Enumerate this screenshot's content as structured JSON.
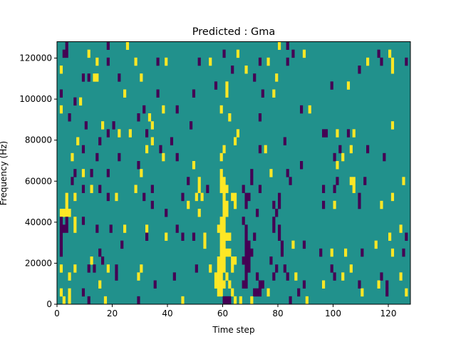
{
  "chart_data": {
    "type": "heatmap",
    "title": "Predicted : Gma",
    "xlabel": "Time step",
    "ylabel": "Frequency (Hz)",
    "xlim": [
      0,
      128
    ],
    "ylim": [
      0,
      128000
    ],
    "x_ticks": [
      0,
      20,
      40,
      60,
      80,
      100,
      120
    ],
    "x_tick_labels": [
      "0",
      "20",
      "40",
      "60",
      "80",
      "100",
      "120"
    ],
    "y_ticks": [
      0,
      20000,
      40000,
      60000,
      80000,
      100000,
      120000
    ],
    "y_tick_labels": [
      "0",
      "20000",
      "40000",
      "60000",
      "80000",
      "100000",
      "120000"
    ],
    "n_cols": 128,
    "n_rows": 33,
    "value_colors": {
      "-1": "#440154",
      "0": "#21918c",
      "1": "#fde725"
    },
    "background_value": 0,
    "rows_top_to_bottom": [
      {
        "neg": [
          3,
          18,
          83
        ],
        "pos": [
          25,
          80
        ]
      },
      {
        "neg": [
          2,
          3,
          60,
          85,
          116
        ],
        "pos": [
          11,
          65,
          89,
          120
        ]
      },
      {
        "neg": [
          18,
          36,
          51,
          73,
          83,
          117,
          126
        ],
        "pos": [
          14,
          28,
          39,
          55,
          76,
          112,
          121
        ]
      },
      {
        "neg": [
          63,
          109
        ],
        "pos": [
          1,
          68,
          121
        ]
      },
      {
        "neg": [
          9,
          11,
          22,
          71
        ],
        "pos": [
          13,
          14,
          30,
          79
        ]
      },
      {
        "neg": [
          57,
          99
        ],
        "pos": [
          61,
          105
        ]
      },
      {
        "neg": [
          1,
          36,
          49,
          74
        ],
        "pos": [
          24,
          61,
          78
        ]
      },
      {
        "neg": [
          6
        ],
        "pos": [
          8
        ]
      },
      {
        "neg": [
          31,
          43,
          88
        ],
        "pos": [
          1,
          38,
          59,
          91
        ]
      },
      {
        "neg": [
          4,
          29,
          73
        ],
        "pos": [
          33,
          62
        ]
      },
      {
        "neg": [
          10,
          20,
          48
        ],
        "pos": [
          16,
          34,
          121
        ]
      },
      {
        "neg": [
          18,
          32,
          96,
          97,
          105
        ],
        "pos": [
          22,
          26,
          65,
          101,
          107
        ]
      },
      {
        "neg": [
          15,
          41,
          82
        ],
        "pos": [
          7,
          34,
          64
        ]
      },
      {
        "neg": [
          9,
          37,
          73,
          102,
          112
        ],
        "pos": [
          32,
          60,
          75,
          106
        ]
      },
      {
        "neg": [
          14,
          22,
          43,
          100,
          118
        ],
        "pos": [
          5,
          38,
          59,
          103
        ]
      },
      {
        "neg": [
          29,
          88
        ],
        "pos": [
          49,
          101
        ]
      },
      {
        "neg": [
          6,
          12,
          18,
          70,
          83
        ],
        "pos": [
          9,
          30,
          59,
          77
        ]
      },
      {
        "neg": [
          5,
          47,
          70,
          84,
          101,
          111
        ],
        "pos": [
          51,
          59,
          60,
          106,
          107,
          125
        ]
      },
      {
        "neg": [
          9,
          15,
          34,
          54,
          67,
          73,
          96,
          100
        ],
        "pos": [
          12,
          28,
          51,
          59,
          60,
          61,
          107
        ]
      },
      {
        "neg": [
          18,
          31,
          45,
          68,
          69,
          80,
          109
        ],
        "pos": [
          3,
          6,
          21,
          50,
          52,
          60,
          63,
          64,
          121
        ]
      },
      {
        "neg": [
          34,
          68,
          78,
          80,
          96,
          109
        ],
        "pos": [
          3,
          47,
          60,
          61,
          64,
          100,
          117
        ]
      },
      {
        "neg": [
          39,
          72,
          79
        ],
        "pos": [
          1,
          2,
          3,
          4,
          51,
          60,
          61
        ]
      },
      {
        "neg": [
          1,
          3,
          9,
          67,
          78
        ],
        "pos": [
          6,
          59,
          60
        ]
      },
      {
        "neg": [
          1,
          2,
          3,
          14,
          19,
          43,
          68,
          78,
          80
        ],
        "pos": [
          6,
          24,
          32,
          58,
          59,
          60,
          124
        ]
      },
      {
        "neg": [
          1,
          32,
          45,
          49,
          68,
          71,
          80,
          126
        ],
        "pos": [
          39,
          53,
          59,
          60,
          61,
          62,
          120
        ]
      },
      {
        "neg": [
          1,
          23,
          68,
          69,
          81,
          89
        ],
        "pos": [
          53,
          59,
          60,
          85,
          115
        ]
      },
      {
        "neg": [
          1,
          15,
          68,
          69,
          70,
          81,
          95,
          110,
          125
        ],
        "pos": [
          59,
          60,
          61,
          62,
          99,
          104,
          121
        ]
      },
      {
        "neg": [
          16,
          67,
          68,
          69,
          77
        ],
        "pos": [
          12,
          58,
          59,
          60,
          63,
          64
        ]
      },
      {
        "neg": [
          11,
          13,
          21,
          50,
          68,
          69,
          79,
          82,
          99
        ],
        "pos": [
          1,
          6,
          18,
          30,
          55,
          58,
          59,
          60,
          63,
          106
        ]
      },
      {
        "neg": [
          21,
          42,
          68,
          72,
          78,
          83,
          100,
          117
        ],
        "pos": [
          4,
          29,
          57,
          58,
          59,
          61,
          86,
          103,
          124
        ]
      },
      {
        "neg": [
          35,
          67,
          68,
          73,
          74,
          89,
          109,
          119
        ],
        "pos": [
          15,
          57,
          58,
          59,
          60,
          62,
          96,
          116
        ]
      },
      {
        "neg": [
          9,
          71,
          72,
          73,
          87,
          119
        ],
        "pos": [
          1,
          4,
          58,
          59,
          63,
          76,
          110,
          126
        ]
      },
      {
        "neg": [
          11,
          29,
          60,
          61,
          62,
          84
        ],
        "pos": [
          2,
          4,
          17,
          45,
          64,
          66,
          70,
          90
        ]
      }
    ]
  }
}
